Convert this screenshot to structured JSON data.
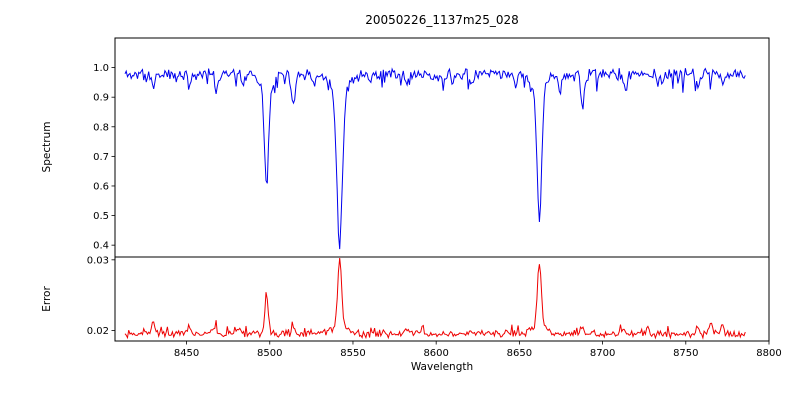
{
  "figure": {
    "background": "#ffffff"
  },
  "chart_data": {
    "type": "line",
    "title": "20050226_1137m25_028",
    "xlabel": "Wavelength",
    "xlim": [
      8407,
      8800
    ],
    "x_ticks": [
      8450,
      8500,
      8550,
      8600,
      8650,
      8700,
      8750,
      8800
    ],
    "x_tick_labels": [
      "8450",
      "8500",
      "8550",
      "8600",
      "8650",
      "8700",
      "8750",
      "8800"
    ],
    "x_start": 8413,
    "x_end": 8786,
    "x_step": 0.75,
    "grid": false,
    "legend": "none",
    "panels": [
      {
        "name": "spectrum",
        "ylabel": "Spectrum",
        "color": "#0000ee",
        "ylim": [
          0.36,
          1.1
        ],
        "y_ticks": [
          0.4,
          0.5,
          0.6,
          0.7,
          0.8,
          0.9,
          1.0
        ],
        "y_tick_labels": [
          "0.4",
          "0.5",
          "0.6",
          "0.7",
          "0.8",
          "0.9",
          "1.0"
        ],
        "series": {
          "seed": 11,
          "baseline": 0.978,
          "noise_amplitude": 0.015,
          "spike_amplitude": -0.05,
          "spike_probability": 0.1,
          "features": [
            {
              "center": 8430,
              "amplitude": -0.035,
              "sigma": 1.0
            },
            {
              "center": 8452,
              "amplitude": -0.028,
              "sigma": 0.9
            },
            {
              "center": 8468,
              "amplitude": -0.05,
              "sigma": 1.0
            },
            {
              "center": 8484,
              "amplitude": -0.03,
              "sigma": 0.9
            },
            {
              "center": 8498,
              "amplitude": -0.33,
              "sigma": 1.2
            },
            {
              "center": 8498,
              "amplitude": -0.05,
              "sigma": 3.5
            },
            {
              "center": 8514,
              "amplitude": -0.1,
              "sigma": 1.0
            },
            {
              "center": 8527,
              "amplitude": -0.03,
              "sigma": 0.9
            },
            {
              "center": 8542,
              "amplitude": -0.5,
              "sigma": 1.6
            },
            {
              "center": 8542,
              "amplitude": -0.07,
              "sigma": 5.0
            },
            {
              "center": 8560,
              "amplitude": -0.03,
              "sigma": 0.9
            },
            {
              "center": 8582,
              "amplitude": -0.04,
              "sigma": 1.0
            },
            {
              "center": 8598,
              "amplitude": -0.028,
              "sigma": 0.9
            },
            {
              "center": 8621,
              "amplitude": -0.04,
              "sigma": 1.0
            },
            {
              "center": 8648,
              "amplitude": -0.03,
              "sigma": 0.9
            },
            {
              "center": 8662,
              "amplitude": -0.44,
              "sigma": 1.4
            },
            {
              "center": 8662,
              "amplitude": -0.06,
              "sigma": 4.0
            },
            {
              "center": 8675,
              "amplitude": -0.04,
              "sigma": 0.9
            },
            {
              "center": 8688,
              "amplitude": -0.11,
              "sigma": 1.0
            },
            {
              "center": 8713,
              "amplitude": -0.045,
              "sigma": 1.0
            },
            {
              "center": 8736,
              "amplitude": -0.03,
              "sigma": 0.9
            },
            {
              "center": 8757,
              "amplitude": -0.04,
              "sigma": 1.0
            },
            {
              "center": 8772,
              "amplitude": -0.035,
              "sigma": 0.9
            }
          ]
        }
      },
      {
        "name": "error",
        "ylabel": "Error",
        "color": "#ee0000",
        "ylim": [
          0.0185,
          0.0304
        ],
        "y_ticks": [
          0.02,
          0.03
        ],
        "y_tick_labels": [
          "0.02",
          "0.03"
        ],
        "series": {
          "seed": 99,
          "baseline": 0.0195,
          "noise_amplitude": 0.0004,
          "spike_amplitude": 0.0015,
          "spike_probability": 0.08,
          "features": [
            {
              "center": 8430,
              "amplitude": 0.002,
              "sigma": 0.9
            },
            {
              "center": 8452,
              "amplitude": 0.001,
              "sigma": 0.8
            },
            {
              "center": 8467,
              "amplitude": 0.0012,
              "sigma": 0.9
            },
            {
              "center": 8481,
              "amplitude": 0.001,
              "sigma": 0.8
            },
            {
              "center": 8498,
              "amplitude": 0.005,
              "sigma": 1.1
            },
            {
              "center": 8514,
              "amplitude": 0.0013,
              "sigma": 0.9
            },
            {
              "center": 8542,
              "amplitude": 0.0095,
              "sigma": 1.2
            },
            {
              "center": 8542,
              "amplitude": 0.0012,
              "sigma": 4.0
            },
            {
              "center": 8582,
              "amplitude": 0.0008,
              "sigma": 0.8
            },
            {
              "center": 8621,
              "amplitude": 0.0008,
              "sigma": 0.8
            },
            {
              "center": 8662,
              "amplitude": 0.009,
              "sigma": 1.1
            },
            {
              "center": 8662,
              "amplitude": 0.0012,
              "sigma": 4.0
            },
            {
              "center": 8688,
              "amplitude": 0.0012,
              "sigma": 0.9
            },
            {
              "center": 8713,
              "amplitude": 0.0008,
              "sigma": 0.8
            },
            {
              "center": 8727,
              "amplitude": 0.001,
              "sigma": 0.8
            },
            {
              "center": 8757,
              "amplitude": 0.0012,
              "sigma": 0.9
            },
            {
              "center": 8765,
              "amplitude": 0.0016,
              "sigma": 1.0
            },
            {
              "center": 8772,
              "amplitude": 0.0012,
              "sigma": 0.9
            }
          ]
        }
      }
    ]
  }
}
